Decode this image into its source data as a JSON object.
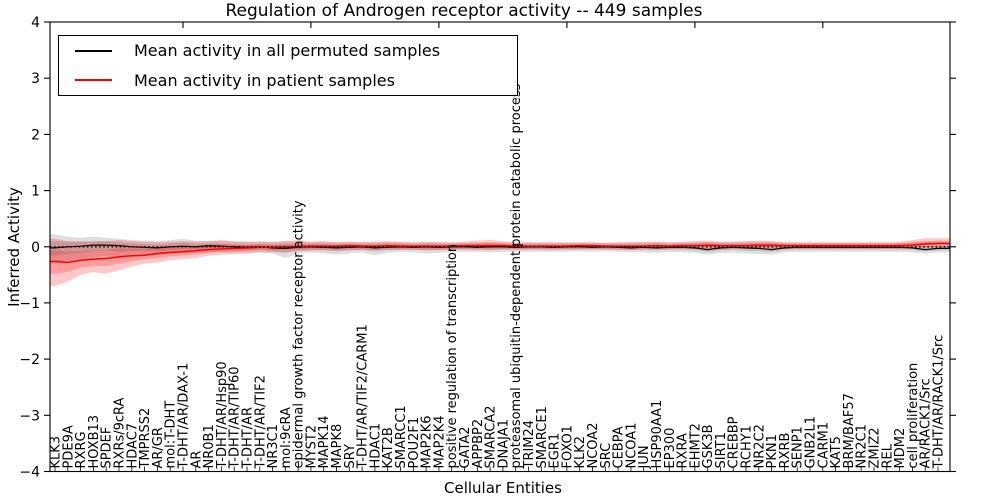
{
  "chart_data": {
    "type": "line",
    "title": "Regulation of Androgen receptor activity -- 449 samples",
    "xlabel": "Cellular Entities",
    "ylabel": "Inferred Activity",
    "ylim": [
      -4,
      4
    ],
    "yticks": [
      4,
      3,
      2,
      1,
      0,
      -1,
      -2,
      -3,
      -4
    ],
    "grid": false,
    "legend_position": "upper left",
    "zero_reference_line": true,
    "sample_count": "449",
    "categories": [
      "KLK3",
      "PDE9A",
      "RXRG",
      "HOXB13",
      "SPDEF",
      "RXRs/9cRA",
      "HDAC7",
      "TMPRSS2",
      "AR/GR",
      "mol:T-DHT",
      "T-DHT/AR/DAX-1",
      "AR",
      "NR0B1",
      "T-DHT/AR/Hsp90",
      "T-DHT/AR/TIP60",
      "T-DHT/AR",
      "T-DHT/AR/TIF2",
      "NR3C1",
      "mol:9cRA",
      "epidermal growth factor receptor activity",
      "MYST2",
      "MAPK14",
      "MAPK8",
      "SRY",
      "T-DHT/AR/TIF2/CARM1",
      "HDAC1",
      "KAT2B",
      "SMARCC1",
      "POU2F1",
      "MAP2K6",
      "MAP2K4",
      "positive regulation of transcription",
      "GATA2",
      "APPBP2",
      "SMARCA2",
      "DNAJA1",
      "proteasomal ubiquitin-dependent protein catabolic process",
      "TRIM24",
      "SMARCE1",
      "EGR1",
      "FOXO1",
      "KLK2",
      "NCOA2",
      "SRC",
      "CEBPA",
      "NCOA1",
      "JUN",
      "HSP90AA1",
      "EP300",
      "RXRA",
      "EHMT2",
      "GSK3B",
      "SIRT1",
      "CREBBP",
      "RCHY1",
      "NR2C2",
      "PKN1",
      "RXRB",
      "SENP1",
      "GNB2L1",
      "CARM1",
      "KAT5",
      "BRM/BAF57",
      "NR2C1",
      "ZMIZ2",
      "REL",
      "MDM2",
      "cell proliferation",
      "AR/RACK1/Src",
      "T-DHT/AR/RACK1/Src"
    ],
    "series": [
      {
        "name": "Mean activity in all permuted samples",
        "color": "#000000",
        "band_color": "rgba(0,0,0,0.13)",
        "values": [
          -0.02,
          0.0,
          0.01,
          0.03,
          0.03,
          0.02,
          0.0,
          -0.01,
          -0.02,
          0.0,
          0.01,
          0.0,
          0.02,
          0.01,
          0.0,
          -0.01,
          0.0,
          -0.02,
          -0.03,
          -0.01,
          0.0,
          -0.01,
          -0.02,
          -0.01,
          0.0,
          -0.02,
          -0.01,
          0.0,
          -0.01,
          0.0,
          -0.01,
          0.0,
          0.0,
          -0.01,
          0.0,
          0.0,
          -0.01,
          0.0,
          0.0,
          -0.01,
          0.0,
          0.0,
          -0.01,
          0.0,
          -0.01,
          -0.02,
          -0.01,
          -0.02,
          -0.01,
          -0.01,
          -0.02,
          -0.05,
          -0.02,
          -0.01,
          -0.02,
          -0.03,
          -0.05,
          -0.02,
          -0.01,
          -0.01,
          -0.01,
          -0.01,
          -0.01,
          -0.01,
          -0.01,
          -0.01,
          -0.01,
          -0.02,
          -0.05,
          -0.03
        ],
        "upper": [
          0.22,
          0.18,
          0.16,
          0.18,
          0.16,
          0.14,
          0.12,
          0.11,
          0.1,
          0.12,
          0.14,
          0.11,
          0.1,
          0.1,
          0.09,
          0.09,
          0.1,
          0.09,
          0.1,
          0.09,
          0.08,
          0.09,
          0.08,
          0.09,
          0.08,
          0.08,
          0.08,
          0.08,
          0.07,
          0.09,
          0.08,
          0.07,
          0.07,
          0.07,
          0.08,
          0.07,
          0.07,
          0.07,
          0.07,
          0.07,
          0.07,
          0.07,
          0.07,
          0.07,
          0.07,
          0.08,
          0.08,
          0.08,
          0.07,
          0.08,
          0.08,
          0.09,
          0.08,
          0.08,
          0.09,
          0.09,
          0.09,
          0.07,
          0.07,
          0.07,
          0.07,
          0.07,
          0.07,
          0.07,
          0.07,
          0.07,
          0.07,
          0.08,
          0.08,
          0.07
        ],
        "lower": [
          -0.3,
          -0.25,
          -0.22,
          -0.18,
          -0.16,
          -0.2,
          -0.16,
          -0.13,
          -0.15,
          -0.12,
          -0.11,
          -0.11,
          -0.1,
          -0.1,
          -0.1,
          -0.1,
          -0.1,
          -0.12,
          -0.2,
          -0.12,
          -0.1,
          -0.12,
          -0.14,
          -0.12,
          -0.1,
          -0.15,
          -0.11,
          -0.09,
          -0.1,
          -0.12,
          -0.11,
          -0.09,
          -0.09,
          -0.09,
          -0.1,
          -0.09,
          -0.09,
          -0.09,
          -0.09,
          -0.09,
          -0.09,
          -0.08,
          -0.09,
          -0.08,
          -0.09,
          -0.1,
          -0.1,
          -0.11,
          -0.09,
          -0.1,
          -0.11,
          -0.14,
          -0.11,
          -0.1,
          -0.12,
          -0.13,
          -0.14,
          -0.1,
          -0.09,
          -0.09,
          -0.09,
          -0.09,
          -0.09,
          -0.09,
          -0.09,
          -0.09,
          -0.09,
          -0.1,
          -0.12,
          -0.1
        ]
      },
      {
        "name": "Mean activity in patient samples",
        "color": "#ff0000",
        "band_color": "rgba(255,0,0,0.22)",
        "values": [
          -0.26,
          -0.28,
          -0.24,
          -0.22,
          -0.21,
          -0.18,
          -0.16,
          -0.15,
          -0.12,
          -0.1,
          -0.09,
          -0.07,
          -0.05,
          -0.04,
          -0.03,
          -0.02,
          -0.01,
          -0.01,
          0.0,
          0.0,
          0.01,
          0.01,
          0.01,
          0.02,
          0.01,
          0.01,
          0.02,
          0.01,
          0.01,
          0.01,
          0.01,
          0.01,
          0.02,
          0.02,
          0.02,
          0.02,
          0.01,
          0.01,
          0.01,
          0.01,
          0.01,
          0.02,
          0.02,
          0.01,
          0.01,
          0.01,
          0.01,
          0.02,
          0.01,
          0.02,
          0.02,
          0.03,
          0.02,
          0.02,
          0.02,
          0.03,
          0.03,
          0.02,
          0.02,
          0.02,
          0.02,
          0.02,
          0.02,
          0.02,
          0.02,
          0.02,
          0.02,
          0.03,
          0.05,
          0.06
        ],
        "upper": [
          0.14,
          0.1,
          0.1,
          0.09,
          0.1,
          0.12,
          0.1,
          0.09,
          0.08,
          0.09,
          0.1,
          0.09,
          0.1,
          0.12,
          0.1,
          0.09,
          0.09,
          0.08,
          0.1,
          0.12,
          0.09,
          0.1,
          0.08,
          0.09,
          0.08,
          0.09,
          0.1,
          0.09,
          0.08,
          0.08,
          0.08,
          0.08,
          0.09,
          0.11,
          0.12,
          0.1,
          0.08,
          0.08,
          0.08,
          0.08,
          0.08,
          0.08,
          0.08,
          0.07,
          0.08,
          0.08,
          0.08,
          0.09,
          0.08,
          0.09,
          0.1,
          0.11,
          0.09,
          0.09,
          0.1,
          0.11,
          0.1,
          0.08,
          0.08,
          0.08,
          0.08,
          0.08,
          0.08,
          0.08,
          0.08,
          0.08,
          0.09,
          0.12,
          0.15,
          0.15
        ],
        "lower": [
          -0.7,
          -0.62,
          -0.5,
          -0.45,
          -0.48,
          -0.42,
          -0.35,
          -0.3,
          -0.28,
          -0.24,
          -0.22,
          -0.2,
          -0.16,
          -0.14,
          -0.13,
          -0.12,
          -0.1,
          -0.1,
          -0.09,
          -0.08,
          -0.07,
          -0.06,
          -0.07,
          -0.06,
          -0.06,
          -0.06,
          -0.05,
          -0.06,
          -0.05,
          -0.06,
          -0.06,
          -0.05,
          -0.05,
          -0.05,
          -0.06,
          -0.05,
          -0.05,
          -0.05,
          -0.05,
          -0.05,
          -0.05,
          -0.05,
          -0.04,
          -0.05,
          -0.05,
          -0.05,
          -0.05,
          -0.04,
          -0.05,
          -0.04,
          -0.04,
          -0.04,
          -0.05,
          -0.04,
          -0.04,
          -0.04,
          -0.04,
          -0.04,
          -0.04,
          -0.04,
          -0.04,
          -0.04,
          -0.04,
          -0.04,
          -0.04,
          -0.04,
          -0.04,
          -0.03,
          -0.02,
          -0.02
        ]
      }
    ]
  }
}
